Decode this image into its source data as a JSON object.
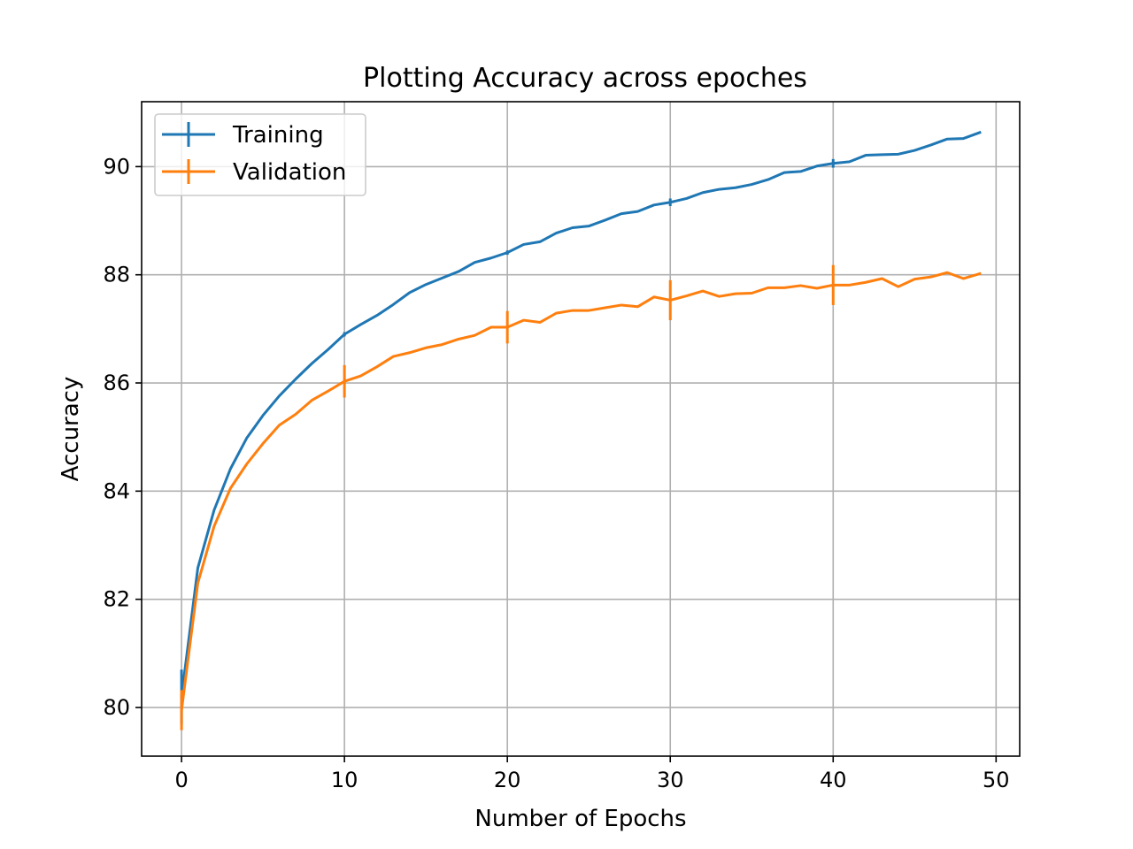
{
  "chart_data": {
    "type": "line",
    "title": "Plotting Accuracy across epoches",
    "xlabel": "Number of Epochs",
    "ylabel": "Accuracy",
    "xlim": [
      -2.45,
      51.45
    ],
    "ylim": [
      79.1,
      91.2
    ],
    "xticks": [
      0,
      10,
      20,
      30,
      40,
      50
    ],
    "yticks": [
      80,
      82,
      84,
      86,
      88,
      90
    ],
    "grid": true,
    "legend_position": "upper left",
    "errorbar_every": 10,
    "x": [
      0,
      1,
      2,
      3,
      4,
      5,
      6,
      7,
      8,
      9,
      10,
      11,
      12,
      13,
      14,
      15,
      16,
      17,
      18,
      19,
      20,
      21,
      22,
      23,
      24,
      25,
      26,
      27,
      28,
      29,
      30,
      31,
      32,
      33,
      34,
      35,
      36,
      37,
      38,
      39,
      40,
      41,
      42,
      43,
      44,
      45,
      46,
      47,
      48,
      49
    ],
    "series": [
      {
        "name": "Training",
        "color": "#1f77b4",
        "values": [
          80.2,
          82.58,
          83.65,
          84.41,
          84.98,
          85.4,
          85.76,
          86.07,
          86.36,
          86.62,
          86.9,
          87.08,
          87.25,
          87.45,
          87.67,
          87.82,
          87.94,
          88.06,
          88.23,
          88.31,
          88.41,
          88.56,
          88.61,
          88.77,
          88.87,
          88.9,
          89.01,
          89.13,
          89.17,
          89.29,
          89.34,
          89.41,
          89.52,
          89.58,
          89.61,
          89.67,
          89.76,
          89.89,
          89.91,
          90.01,
          90.06,
          90.09,
          90.21,
          90.22,
          90.23,
          90.3,
          90.4,
          90.51,
          90.52,
          90.63
        ],
        "error_bars": [
          {
            "x": 0,
            "err": 0.5
          },
          {
            "x": 10,
            "err": 0.04
          },
          {
            "x": 20,
            "err": 0.04
          },
          {
            "x": 30,
            "err": 0.07
          },
          {
            "x": 40,
            "err": 0.08
          }
        ]
      },
      {
        "name": "Validation",
        "color": "#ff7f0e",
        "values": [
          79.95,
          82.3,
          83.35,
          84.05,
          84.5,
          84.88,
          85.22,
          85.42,
          85.68,
          85.85,
          86.03,
          86.13,
          86.3,
          86.49,
          86.56,
          86.65,
          86.71,
          86.81,
          86.88,
          87.03,
          87.03,
          87.16,
          87.12,
          87.29,
          87.34,
          87.34,
          87.39,
          87.44,
          87.41,
          87.59,
          87.53,
          87.61,
          87.7,
          87.6,
          87.65,
          87.66,
          87.76,
          87.76,
          87.8,
          87.75,
          87.81,
          87.81,
          87.86,
          87.93,
          87.78,
          87.92,
          87.96,
          88.04,
          87.93,
          88.02
        ],
        "error_bars": [
          {
            "x": 0,
            "err": 0.37
          },
          {
            "x": 10,
            "err": 0.3
          },
          {
            "x": 20,
            "err": 0.3
          },
          {
            "x": 30,
            "err": 0.37
          },
          {
            "x": 40,
            "err": 0.37
          }
        ]
      }
    ]
  }
}
